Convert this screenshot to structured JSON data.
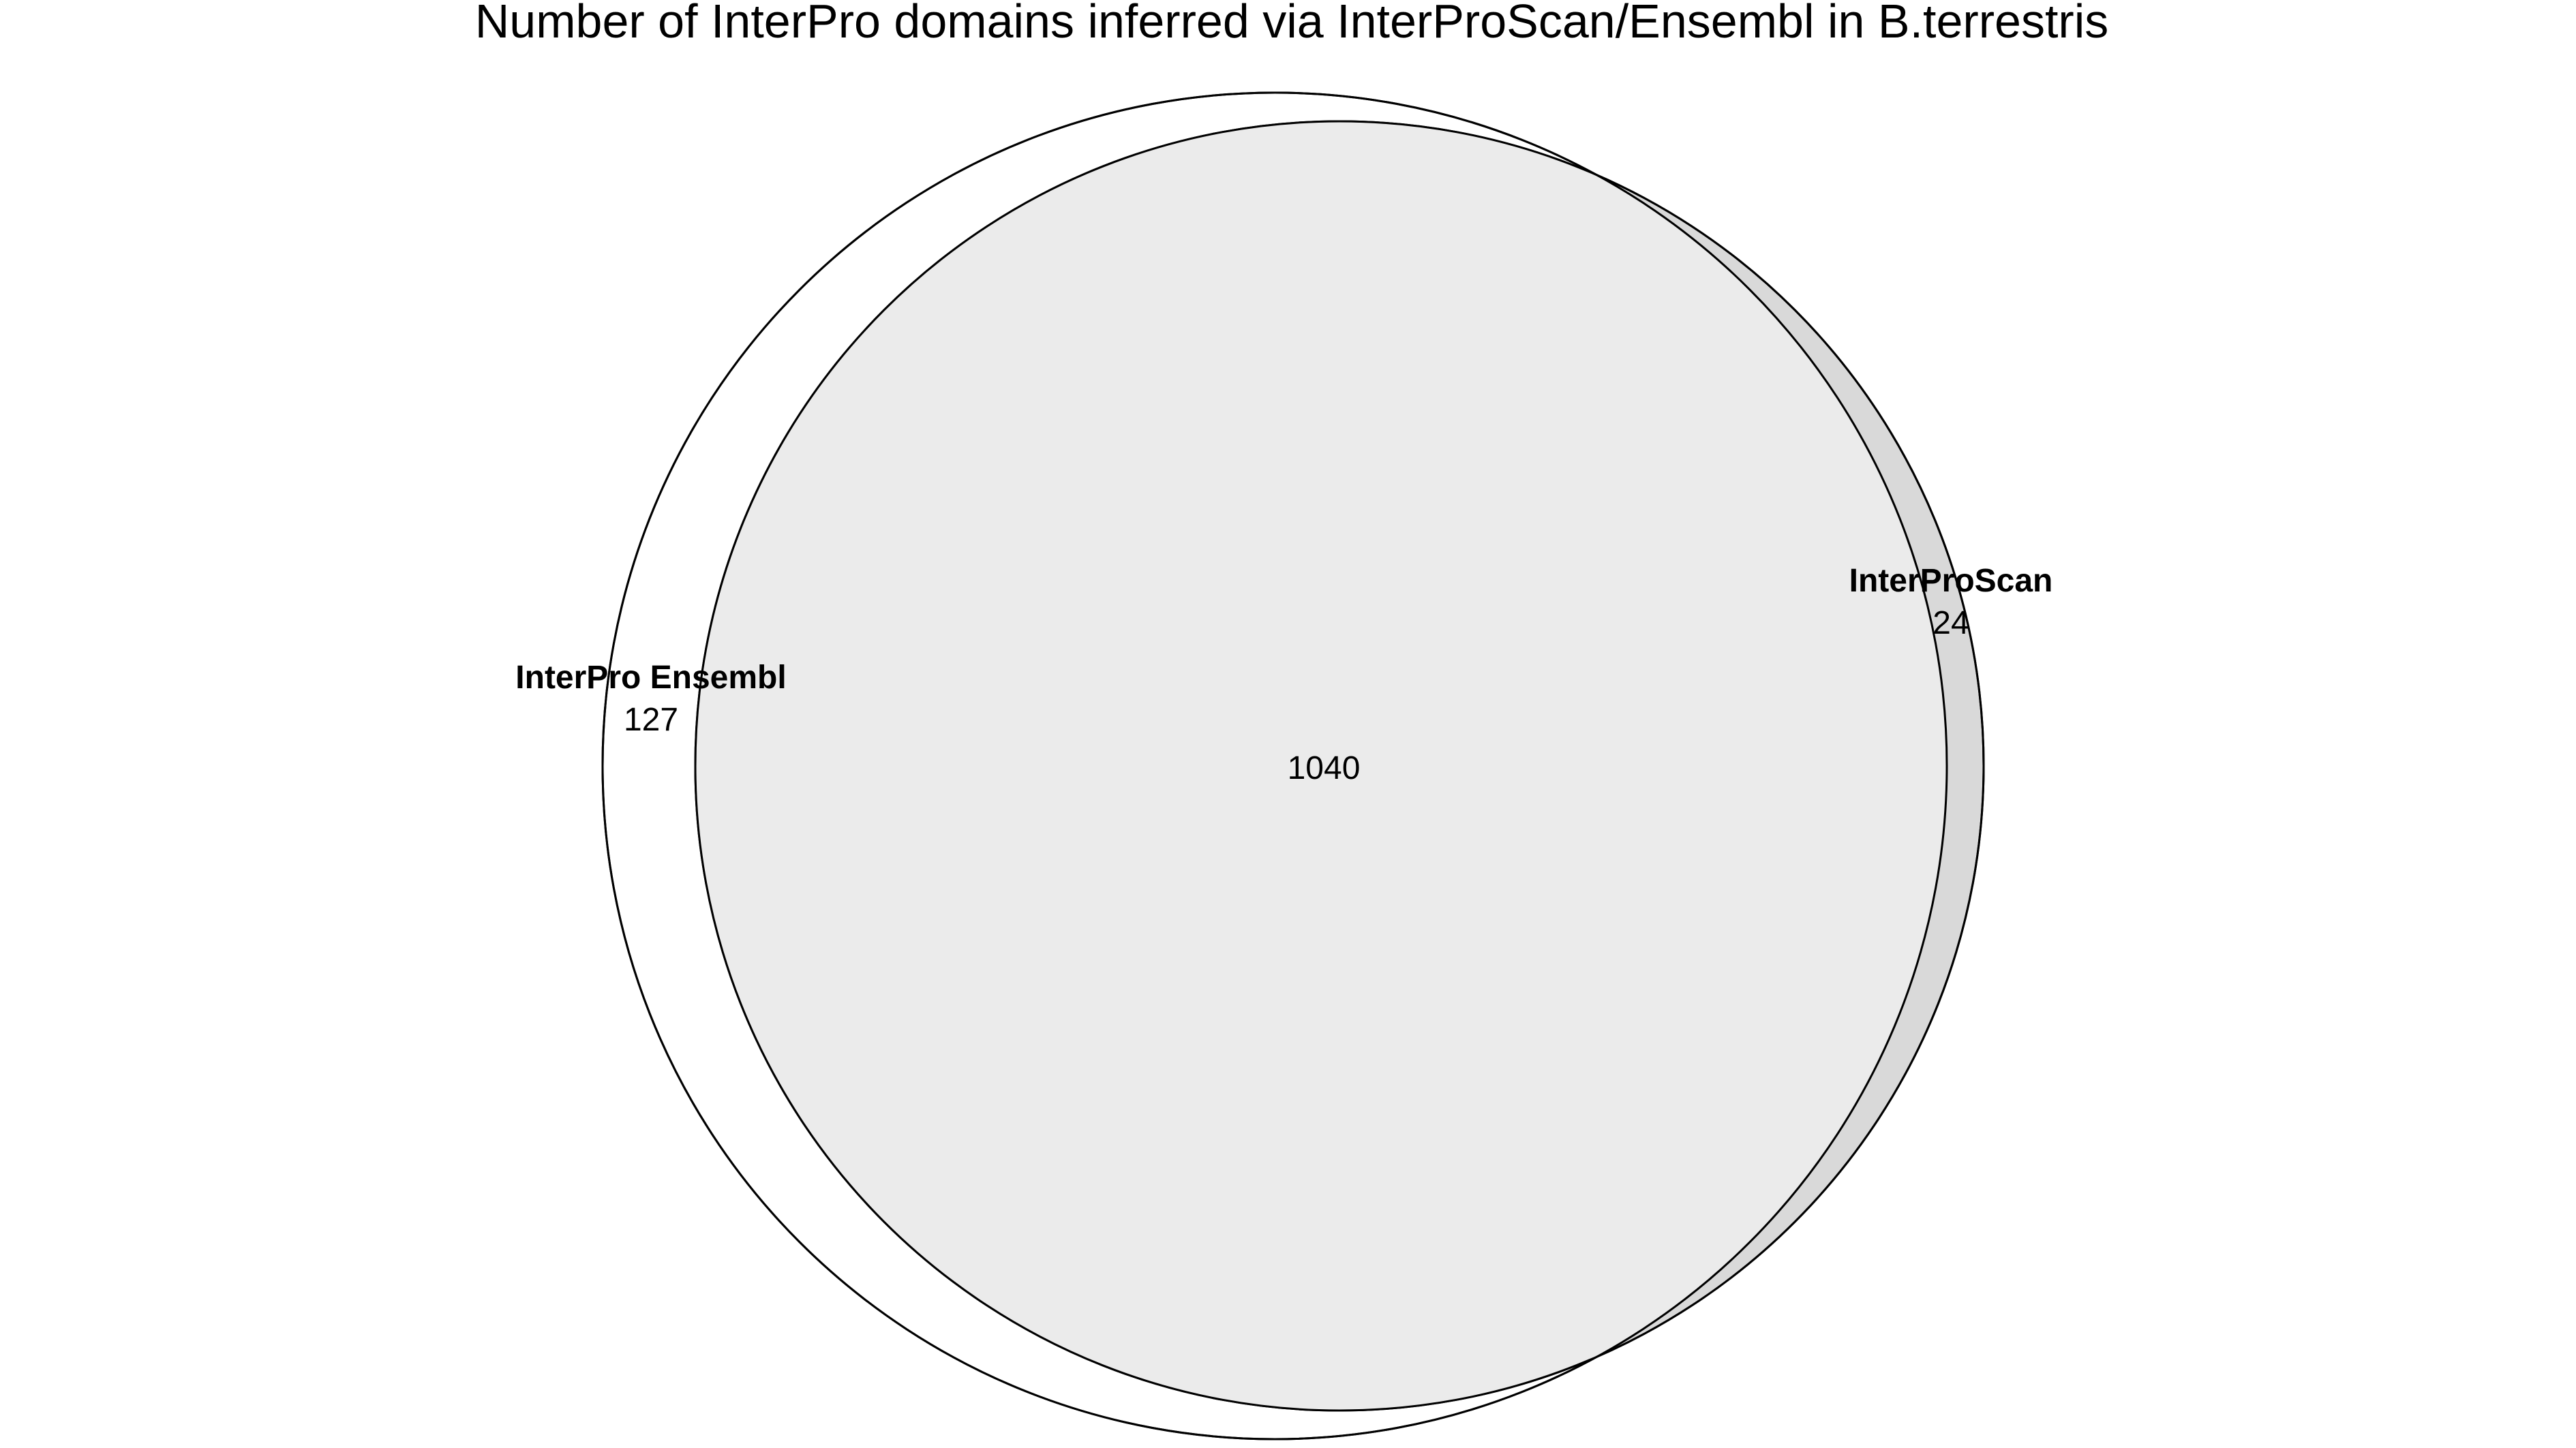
{
  "title": "Number of InterPro domains inferred via InterProScan/Ensembl in B.terrestris",
  "sets": [
    {
      "name": "InterPro Ensembl",
      "only_count": "127",
      "fill": "#ffffff"
    },
    {
      "name": "InterProScan",
      "only_count": "24",
      "fill": "#d9d9d9"
    }
  ],
  "intersection": {
    "count": "1040",
    "fill": "#ebebeb"
  },
  "colors": {
    "stroke": "#000000",
    "background": "#ffffff"
  }
}
